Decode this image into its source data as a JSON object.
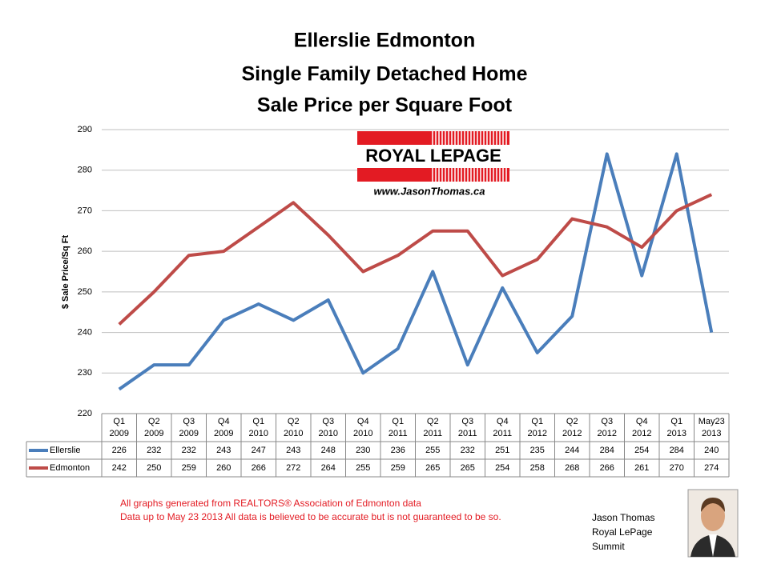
{
  "chart_data": {
    "type": "line",
    "title": [
      "Ellerslie Edmonton",
      "Single Family Detached Home",
      "Sale Price per Square Foot"
    ],
    "y_label": "$ Sale Price/Sq Ft",
    "categories": [
      [
        "Q1",
        "2009"
      ],
      [
        "Q2",
        "2009"
      ],
      [
        "Q3",
        "2009"
      ],
      [
        "Q4",
        "2009"
      ],
      [
        "Q1",
        "2010"
      ],
      [
        "Q2",
        "2010"
      ],
      [
        "Q3",
        "2010"
      ],
      [
        "Q4",
        "2010"
      ],
      [
        "Q1",
        "2011"
      ],
      [
        "Q2",
        "2011"
      ],
      [
        "Q3",
        "2011"
      ],
      [
        "Q4",
        "2011"
      ],
      [
        "Q1",
        "2012"
      ],
      [
        "Q2",
        "2012"
      ],
      [
        "Q3",
        "2012"
      ],
      [
        "Q4",
        "2012"
      ],
      [
        "Q1",
        "2013"
      ],
      [
        "May23",
        "2013"
      ]
    ],
    "series": [
      {
        "name": "Ellerslie",
        "color": "#4a7ebb",
        "values": [
          226,
          232,
          232,
          243,
          247,
          243,
          248,
          230,
          236,
          255,
          232,
          251,
          235,
          244,
          284,
          254,
          284,
          240
        ]
      },
      {
        "name": "Edmonton",
        "color": "#be4b48",
        "values": [
          242,
          250,
          259,
          260,
          266,
          272,
          264,
          255,
          259,
          265,
          265,
          254,
          258,
          268,
          266,
          261,
          270,
          274
        ]
      }
    ],
    "ylim": [
      220,
      290
    ],
    "yticks": [
      220,
      230,
      240,
      250,
      260,
      270,
      280,
      290
    ],
    "grid": true
  },
  "logo": {
    "brand": "ROYAL LEPAGE",
    "website": "www.JasonThomas.ca"
  },
  "footnote": [
    "All graphs generated from REALTORS® Association of Edmonton data",
    "Data up to  May 23  2013  All data is believed to be accurate but is not guaranteed to be so."
  ],
  "agent": [
    "Jason Thomas",
    "Royal LePage",
    "Summit"
  ]
}
